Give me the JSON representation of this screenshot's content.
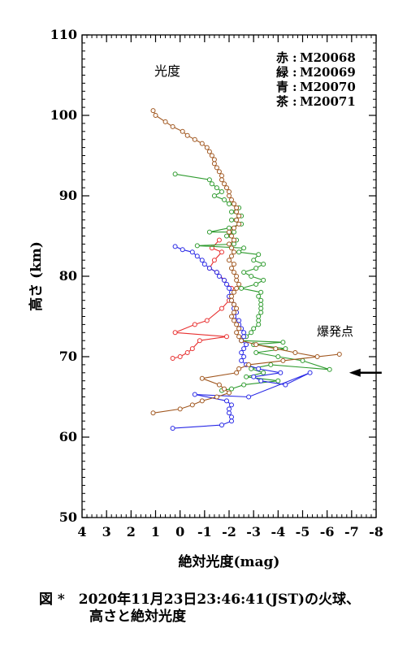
{
  "chart_data": {
    "type": "line",
    "title": "光度",
    "xlabel": "絶対光度(mag)",
    "ylabel": "高さ (km)",
    "xlim": [
      4,
      -8
    ],
    "ylim": [
      50,
      110
    ],
    "xticks": [
      "4",
      "3",
      "2",
      "1",
      "0",
      "-1",
      "-2",
      "-3",
      "-4",
      "-5",
      "-6",
      "-7",
      "-8"
    ],
    "yticks": [
      "50",
      "60",
      "70",
      "80",
      "90",
      "100",
      "110"
    ],
    "legend": {
      "placement": "top-right",
      "entries": [
        {
          "label": "赤",
          "sep": ":",
          "id": "M20068"
        },
        {
          "label": "緑",
          "sep": ":",
          "id": "M20069"
        },
        {
          "label": "青",
          "sep": ":",
          "id": "M20070"
        },
        {
          "label": "茶",
          "sep": ":",
          "id": "M20071"
        }
      ]
    },
    "annotation": {
      "text": "爆発点",
      "arrow_x": -6.9,
      "arrow_y": 68
    },
    "series": [
      {
        "name": "M20068",
        "color": "#e83030",
        "points": [
          [
            -1.6,
            84.5
          ],
          [
            -1.3,
            83.5
          ],
          [
            -1.7,
            83
          ],
          [
            -1.4,
            82
          ],
          [
            -1.2,
            81
          ],
          [
            -1.5,
            80.5
          ],
          [
            -1.8,
            79.5
          ],
          [
            -2.1,
            78.5
          ],
          [
            -2.0,
            77
          ],
          [
            -1.7,
            76
          ],
          [
            -1.1,
            74.5
          ],
          [
            -0.6,
            74
          ],
          [
            0.2,
            73
          ],
          [
            -1.9,
            72.5
          ],
          [
            -0.8,
            72
          ],
          [
            -0.5,
            71
          ],
          [
            -0.3,
            70.5
          ],
          [
            0.0,
            70
          ],
          [
            0.3,
            69.8
          ]
        ]
      },
      {
        "name": "M20069",
        "color": "#2e9b2e",
        "points": [
          [
            0.2,
            92.7
          ],
          [
            -1.2,
            92
          ],
          [
            -1.3,
            91.5
          ],
          [
            -1.5,
            91
          ],
          [
            -1.7,
            90.5
          ],
          [
            -1.4,
            90
          ],
          [
            -1.8,
            89.5
          ],
          [
            -2.0,
            89
          ],
          [
            -2.4,
            88.5
          ],
          [
            -2.1,
            88
          ],
          [
            -2.5,
            87.5
          ],
          [
            -2.1,
            87
          ],
          [
            -2.5,
            86.5
          ],
          [
            -2.0,
            86
          ],
          [
            -1.2,
            85.5
          ],
          [
            -2.2,
            85.5
          ],
          [
            -1.9,
            85
          ],
          [
            -2.3,
            84.5
          ],
          [
            -2.2,
            84
          ],
          [
            -0.7,
            83.8
          ],
          [
            -2.6,
            83.5
          ],
          [
            -2.4,
            83
          ],
          [
            -3.2,
            82.7
          ],
          [
            -3.0,
            82
          ],
          [
            -3.4,
            81.5
          ],
          [
            -3.1,
            81
          ],
          [
            -2.6,
            80.5
          ],
          [
            -2.9,
            80
          ],
          [
            -3.4,
            79.5
          ],
          [
            -3.1,
            79
          ],
          [
            -2.5,
            78.5
          ],
          [
            -3.3,
            78
          ],
          [
            -3.2,
            77.5
          ],
          [
            -3.3,
            77
          ],
          [
            -3.3,
            76.5
          ],
          [
            -3.3,
            76
          ],
          [
            -3.3,
            75.5
          ],
          [
            -3.2,
            75
          ],
          [
            -3.2,
            74.5
          ],
          [
            -3.2,
            74
          ],
          [
            -3.0,
            73.5
          ],
          [
            -2.9,
            73
          ],
          [
            -2.7,
            72.5
          ],
          [
            -2.5,
            72
          ],
          [
            -4.2,
            71.8
          ],
          [
            -3.0,
            71.5
          ],
          [
            -4.3,
            71
          ],
          [
            -3.1,
            70.5
          ],
          [
            -4.0,
            70
          ],
          [
            -5.0,
            69.5
          ],
          [
            -6.1,
            68.4
          ],
          [
            -3.7,
            69
          ],
          [
            -2.9,
            68.5
          ],
          [
            -3.4,
            68
          ],
          [
            -2.7,
            67.5
          ],
          [
            -4.0,
            67
          ],
          [
            -2.6,
            66.5
          ],
          [
            -2.1,
            66
          ],
          [
            -1.7,
            65.8
          ]
        ]
      },
      {
        "name": "M20070",
        "color": "#2828e6",
        "points": [
          [
            0.2,
            83.7
          ],
          [
            -0.1,
            83.3
          ],
          [
            -0.5,
            83
          ],
          [
            -0.7,
            82.5
          ],
          [
            -0.9,
            82
          ],
          [
            -1.0,
            81.5
          ],
          [
            -1.2,
            81
          ],
          [
            -1.5,
            80.5
          ],
          [
            -1.6,
            80
          ],
          [
            -1.8,
            79.5
          ],
          [
            -1.9,
            79
          ],
          [
            -2.0,
            78.5
          ],
          [
            -2.1,
            78
          ],
          [
            -2.0,
            77.5
          ],
          [
            -2.1,
            77
          ],
          [
            -2.2,
            76.5
          ],
          [
            -2.2,
            76
          ],
          [
            -2.3,
            75.5
          ],
          [
            -2.2,
            75
          ],
          [
            -2.4,
            74.5
          ],
          [
            -2.4,
            74
          ],
          [
            -2.5,
            73.5
          ],
          [
            -2.6,
            73
          ],
          [
            -2.6,
            72.5
          ],
          [
            -2.5,
            72
          ],
          [
            -2.7,
            71.5
          ],
          [
            -2.6,
            71
          ],
          [
            -2.5,
            70.5
          ],
          [
            -2.6,
            70
          ],
          [
            -2.5,
            69.5
          ],
          [
            -2.7,
            69
          ],
          [
            -3.2,
            68.5
          ],
          [
            -4.1,
            68
          ],
          [
            -3.0,
            67.5
          ],
          [
            -3.3,
            67
          ],
          [
            -4.3,
            66.5
          ],
          [
            -5.3,
            68
          ],
          [
            -2.8,
            65
          ],
          [
            -0.6,
            65.3
          ],
          [
            -1.9,
            64.5
          ],
          [
            -2.1,
            64
          ],
          [
            -2.0,
            63.5
          ],
          [
            -2.0,
            63
          ],
          [
            -2.1,
            62.5
          ],
          [
            -2.1,
            62
          ],
          [
            -1.7,
            61.5
          ],
          [
            0.3,
            61.1
          ]
        ]
      },
      {
        "name": "M20071",
        "color": "#a0561e",
        "points": [
          [
            1.1,
            100.6
          ],
          [
            1.0,
            100
          ],
          [
            0.6,
            99.2
          ],
          [
            0.3,
            98.6
          ],
          [
            -0.1,
            98
          ],
          [
            -0.3,
            97.5
          ],
          [
            -0.6,
            97
          ],
          [
            -0.9,
            96.5
          ],
          [
            -1.1,
            96
          ],
          [
            -1.2,
            95.5
          ],
          [
            -1.3,
            95
          ],
          [
            -1.4,
            94.5
          ],
          [
            -1.4,
            94
          ],
          [
            -1.5,
            93.5
          ],
          [
            -1.6,
            93
          ],
          [
            -1.7,
            92.5
          ],
          [
            -1.7,
            92
          ],
          [
            -1.8,
            91.5
          ],
          [
            -1.9,
            91
          ],
          [
            -2.0,
            90.5
          ],
          [
            -2.0,
            90
          ],
          [
            -2.1,
            89.5
          ],
          [
            -2.2,
            89
          ],
          [
            -2.3,
            88.5
          ],
          [
            -2.3,
            88
          ],
          [
            -2.4,
            87.5
          ],
          [
            -2.3,
            87
          ],
          [
            -2.4,
            86.5
          ],
          [
            -2.2,
            86
          ],
          [
            -2.0,
            85.5
          ],
          [
            -2.1,
            85
          ],
          [
            -2.2,
            84.5
          ],
          [
            -2.0,
            84
          ],
          [
            -2.1,
            83.5
          ],
          [
            -2.2,
            83
          ],
          [
            -2.1,
            82.5
          ],
          [
            -2.0,
            82
          ],
          [
            -2.2,
            81.5
          ],
          [
            -2.1,
            81
          ],
          [
            -2.2,
            80.5
          ],
          [
            -2.3,
            80
          ],
          [
            -2.3,
            79.5
          ],
          [
            -2.4,
            79
          ],
          [
            -2.3,
            78.5
          ],
          [
            -2.2,
            78
          ],
          [
            -2.1,
            77.5
          ],
          [
            -2.1,
            77
          ],
          [
            -2.2,
            76.5
          ],
          [
            -2.3,
            76
          ],
          [
            -2.2,
            75.5
          ],
          [
            -2.1,
            75
          ],
          [
            -2.2,
            74.5
          ],
          [
            -2.3,
            74
          ],
          [
            -2.4,
            73.5
          ],
          [
            -2.3,
            73
          ],
          [
            -2.4,
            72.5
          ],
          [
            -2.5,
            72
          ],
          [
            -3.1,
            71.5
          ],
          [
            -3.9,
            71
          ],
          [
            -4.7,
            70.5
          ],
          [
            -5.6,
            70
          ],
          [
            -6.5,
            70.3
          ],
          [
            -4.2,
            69.5
          ],
          [
            -2.8,
            69
          ],
          [
            -2.4,
            68.5
          ],
          [
            -2.3,
            68
          ],
          [
            -0.9,
            67.3
          ],
          [
            -1.6,
            66.5
          ],
          [
            -1.8,
            66
          ],
          [
            -2.0,
            65.5
          ],
          [
            -1.5,
            65
          ],
          [
            -0.9,
            64.5
          ],
          [
            -0.5,
            64
          ],
          [
            0.0,
            63.5
          ],
          [
            1.1,
            63
          ]
        ]
      }
    ]
  },
  "caption": {
    "line1": "図 *　2020年11月23日23:46:41(JST)の火球、",
    "line2": "高さと絶対光度"
  }
}
